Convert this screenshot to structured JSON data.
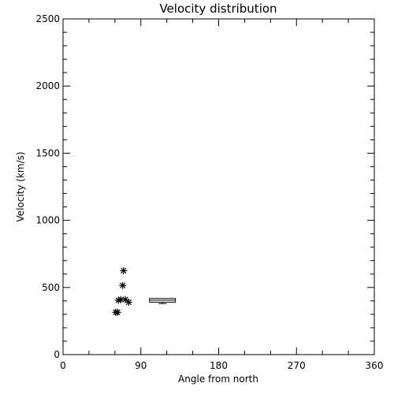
{
  "chart_data": {
    "type": "scatter",
    "title": "Velocity distribution",
    "xlabel": "Angle from north",
    "ylabel": "Velocity (km/s)",
    "xlim": [
      0,
      360
    ],
    "ylim": [
      0,
      2500
    ],
    "xticks": [
      0,
      90,
      180,
      270,
      360
    ],
    "xtick_labels": [
      "0",
      "90",
      "180",
      "270",
      "360"
    ],
    "yticks": [
      0,
      500,
      1000,
      1500,
      2000,
      2500
    ],
    "ytick_labels": [
      "0",
      "500",
      "1000",
      "1500",
      "2000",
      "2500"
    ],
    "grid": false,
    "series": [
      {
        "marker": "asterisk",
        "points": [
          {
            "x": 70,
            "y": 625
          },
          {
            "x": 69,
            "y": 515
          },
          {
            "x": 64,
            "y": 405
          },
          {
            "x": 67,
            "y": 410
          },
          {
            "x": 72,
            "y": 410
          },
          {
            "x": 76,
            "y": 390
          },
          {
            "x": 61,
            "y": 315
          },
          {
            "x": 63,
            "y": 315
          }
        ]
      },
      {
        "marker": "box",
        "boxes": [
          {
            "x_min": 100,
            "x_max": 130,
            "q1": 390,
            "median": 405,
            "q3": 418,
            "whisker_low": 380,
            "whisker_high": 418
          }
        ]
      }
    ],
    "colors": {
      "axes": "#000000",
      "marks": "#000000",
      "background": "#ffffff"
    }
  }
}
